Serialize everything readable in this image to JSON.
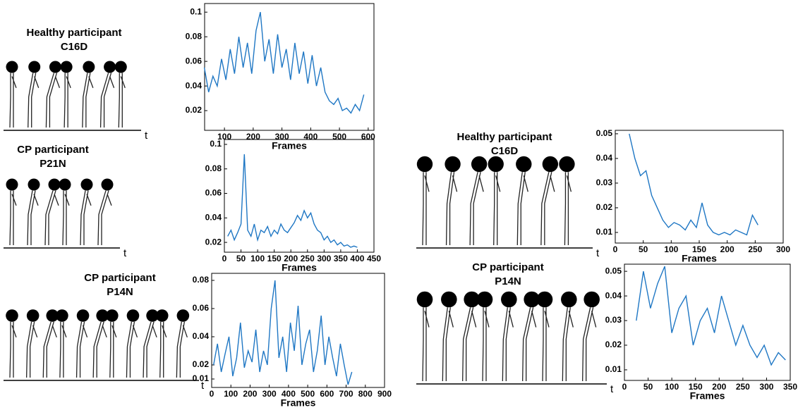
{
  "chart_data": [
    {
      "type": "line",
      "xlabel": "Frames",
      "xlim": [
        31,
        620
      ],
      "ylim": [
        0.004,
        0.107
      ],
      "xticks": [
        100,
        200,
        300,
        400,
        500,
        600
      ],
      "yticks": [
        0.02,
        0.04,
        0.06,
        0.08,
        0.1
      ],
      "series": [
        {
          "color": "#1f77c4",
          "x": [
            30,
            45,
            60,
            75,
            90,
            105,
            120,
            135,
            150,
            165,
            180,
            195,
            210,
            225,
            240,
            255,
            270,
            285,
            300,
            315,
            330,
            345,
            360,
            375,
            390,
            405,
            420,
            435,
            450,
            465,
            480,
            495,
            510,
            525,
            540,
            555,
            570,
            585
          ],
          "values": [
            0.055,
            0.035,
            0.048,
            0.04,
            0.062,
            0.045,
            0.07,
            0.05,
            0.08,
            0.055,
            0.075,
            0.05,
            0.085,
            0.1,
            0.06,
            0.078,
            0.05,
            0.082,
            0.055,
            0.07,
            0.045,
            0.075,
            0.05,
            0.068,
            0.042,
            0.065,
            0.04,
            0.055,
            0.035,
            0.028,
            0.025,
            0.03,
            0.02,
            0.022,
            0.018,
            0.025,
            0.02,
            0.033
          ]
        }
      ]
    },
    {
      "type": "line",
      "xlabel": "Frames",
      "xlim": [
        0,
        450
      ],
      "ylim": [
        0.012,
        0.104
      ],
      "xticks": [
        0,
        50,
        100,
        150,
        200,
        250,
        300,
        350,
        400,
        450
      ],
      "yticks": [
        0.02,
        0.04,
        0.06,
        0.08,
        0.1
      ],
      "series": [
        {
          "color": "#1f77c4",
          "x": [
            10,
            20,
            30,
            40,
            50,
            60,
            70,
            80,
            90,
            100,
            110,
            120,
            130,
            140,
            150,
            160,
            170,
            180,
            190,
            200,
            210,
            220,
            230,
            240,
            250,
            260,
            270,
            280,
            290,
            300,
            310,
            320,
            330,
            340,
            350,
            360,
            370,
            380,
            390,
            400
          ],
          "values": [
            0.025,
            0.03,
            0.022,
            0.028,
            0.035,
            0.092,
            0.03,
            0.025,
            0.035,
            0.022,
            0.03,
            0.028,
            0.033,
            0.025,
            0.03,
            0.027,
            0.035,
            0.03,
            0.028,
            0.032,
            0.036,
            0.042,
            0.038,
            0.046,
            0.04,
            0.044,
            0.035,
            0.03,
            0.028,
            0.022,
            0.025,
            0.02,
            0.022,
            0.018,
            0.02,
            0.017,
            0.018,
            0.016,
            0.017,
            0.016
          ]
        }
      ]
    },
    {
      "type": "line",
      "xlabel": "Frames",
      "xlim": [
        0,
        900
      ],
      "ylim": [
        0.004,
        0.085
      ],
      "xticks": [
        0,
        100,
        200,
        300,
        400,
        500,
        600,
        700,
        800,
        900
      ],
      "yticks": [
        0.01,
        0.02,
        0.04,
        0.06,
        0.08
      ],
      "series": [
        {
          "color": "#1f77c4",
          "x": [
            10,
            30,
            50,
            70,
            90,
            110,
            130,
            150,
            170,
            190,
            210,
            230,
            250,
            270,
            290,
            310,
            330,
            350,
            370,
            390,
            410,
            430,
            450,
            470,
            490,
            510,
            530,
            550,
            570,
            590,
            610,
            630,
            650,
            670,
            690,
            710,
            730
          ],
          "values": [
            0.02,
            0.035,
            0.015,
            0.028,
            0.04,
            0.012,
            0.025,
            0.05,
            0.018,
            0.03,
            0.022,
            0.045,
            0.015,
            0.03,
            0.02,
            0.06,
            0.08,
            0.025,
            0.04,
            0.015,
            0.05,
            0.03,
            0.062,
            0.02,
            0.035,
            0.045,
            0.015,
            0.03,
            0.055,
            0.02,
            0.04,
            0.025,
            0.012,
            0.035,
            0.02,
            0.006,
            0.015
          ]
        }
      ]
    },
    {
      "type": "line",
      "xlabel": "Frames",
      "xlim": [
        0,
        300
      ],
      "ylim": [
        0.0057,
        0.0514
      ],
      "xticks": [
        0,
        50,
        100,
        150,
        200,
        250,
        300
      ],
      "yticks": [
        0.01,
        0.02,
        0.03,
        0.04,
        0.05
      ],
      "series": [
        {
          "color": "#1f77c4",
          "x": [
            25,
            35,
            45,
            55,
            65,
            75,
            85,
            95,
            105,
            115,
            125,
            135,
            145,
            155,
            165,
            175,
            185,
            195,
            205,
            215,
            225,
            235,
            245,
            255
          ],
          "values": [
            0.05,
            0.04,
            0.033,
            0.035,
            0.025,
            0.02,
            0.015,
            0.012,
            0.014,
            0.013,
            0.011,
            0.015,
            0.012,
            0.022,
            0.013,
            0.01,
            0.009,
            0.01,
            0.009,
            0.011,
            0.01,
            0.009,
            0.017,
            0.013
          ]
        }
      ]
    },
    {
      "type": "line",
      "xlabel": "Frames",
      "xlim": [
        0,
        350
      ],
      "ylim": [
        0.0057,
        0.0529
      ],
      "xticks": [
        0,
        50,
        100,
        150,
        200,
        250,
        300,
        350
      ],
      "yticks": [
        0.01,
        0.02,
        0.03,
        0.04,
        0.05
      ],
      "series": [
        {
          "color": "#1f77c4",
          "x": [
            25,
            40,
            55,
            70,
            85,
            100,
            115,
            130,
            145,
            160,
            175,
            190,
            205,
            220,
            235,
            250,
            265,
            280,
            295,
            310,
            325,
            340
          ],
          "values": [
            0.03,
            0.05,
            0.035,
            0.045,
            0.052,
            0.025,
            0.035,
            0.04,
            0.02,
            0.03,
            0.035,
            0.025,
            0.04,
            0.03,
            0.02,
            0.028,
            0.02,
            0.015,
            0.02,
            0.012,
            0.017,
            0.014
          ]
        }
      ]
    }
  ],
  "illustrations": [
    {
      "title": "Healthy participant",
      "id": "C16D",
      "axis_label": "t"
    },
    {
      "title": "CP participant",
      "id": "P21N",
      "axis_label": "t"
    },
    {
      "title": "CP participant",
      "id": "P14N",
      "axis_label": "t"
    },
    {
      "title": "Healthy participant",
      "id": "C16D",
      "axis_label": "t"
    },
    {
      "title": "CP participant",
      "id": "P14N",
      "axis_label": "t"
    }
  ]
}
